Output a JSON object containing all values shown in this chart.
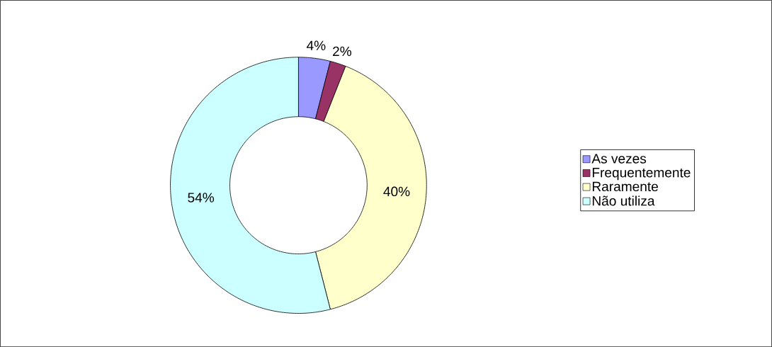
{
  "chart_data": {
    "type": "donut",
    "categories": [
      "As vezes",
      "Frequentemente",
      "Raramente",
      "Não utiliza"
    ],
    "values": [
      4,
      2,
      40,
      54
    ],
    "colors": [
      "#9999ff",
      "#993366",
      "#ffffcc",
      "#ccffff"
    ],
    "value_labels": [
      "4%",
      "2%",
      "40%",
      "54%"
    ],
    "legend": "right"
  }
}
